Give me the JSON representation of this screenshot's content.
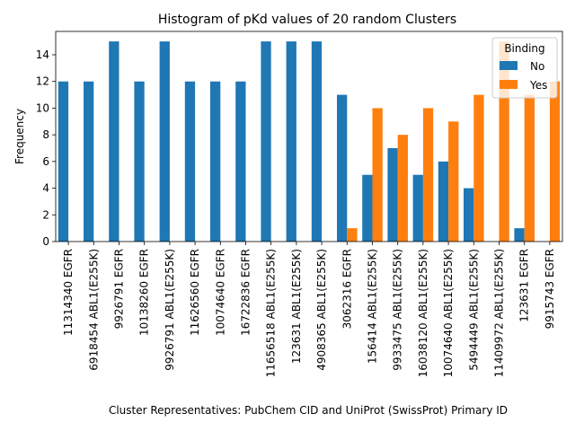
{
  "chart_data": {
    "type": "bar",
    "title": "Histogram of pKd values of 20 random Clusters",
    "xlabel": "Cluster Representatives: PubChem CID and UniProt (SwissProt) Primary ID",
    "ylabel": "Frequency",
    "ylim": [
      0,
      15.75
    ],
    "yticks": [
      0,
      2,
      4,
      6,
      8,
      10,
      12,
      14
    ],
    "grid": false,
    "legend": {
      "title": "Binding",
      "position": "top-right"
    },
    "categories": [
      "11314340 EGFR",
      "6918454 ABL1(E255K)",
      "9926791 EGFR",
      "10138260 EGFR",
      "9926791 ABL1(E255K)",
      "11626560 EGFR",
      "10074640 EGFR",
      "16722836 EGFR",
      "11656518 ABL1(E255K)",
      "123631 ABL1(E255K)",
      "4908365 ABL1(E255K)",
      "3062316 EGFR",
      "156414 ABL1(E255K)",
      "9933475 ABL1(E255K)",
      "16038120 ABL1(E255K)",
      "10074640 ABL1(E255K)",
      "5494449 ABL1(E255K)",
      "11409972 ABL1(E255K)",
      "123631 EGFR",
      "9915743 EGFR"
    ],
    "series": [
      {
        "name": "No",
        "color": "#1f77b4",
        "values": [
          12,
          12,
          15,
          12,
          15,
          12,
          12,
          12,
          15,
          15,
          15,
          11,
          5,
          7,
          5,
          6,
          4,
          0,
          1,
          0
        ]
      },
      {
        "name": "Yes",
        "color": "#ff7f0e",
        "values": [
          0,
          0,
          0,
          0,
          0,
          0,
          0,
          0,
          0,
          0,
          0,
          1,
          10,
          8,
          10,
          9,
          11,
          15,
          11,
          12
        ]
      }
    ]
  }
}
